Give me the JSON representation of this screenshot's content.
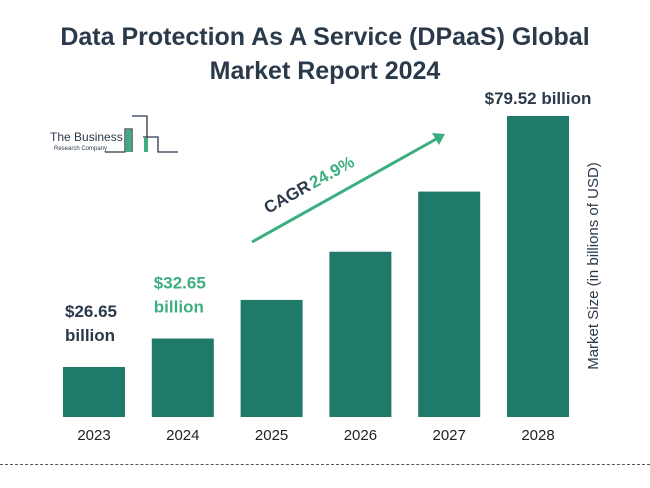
{
  "title_line1": "Data Protection As A Service (DPaaS) Global",
  "title_line2": "Market Report 2024",
  "logo": {
    "line1": "The Business",
    "line2": "Research Company"
  },
  "colors": {
    "bar": "#1f7a69",
    "accent": "#3dae80",
    "text": "#2b3a4a"
  },
  "chart_data": {
    "type": "bar",
    "title": "Data Protection As A Service (DPaaS) Global Market Report 2024",
    "categories": [
      "2023",
      "2024",
      "2025",
      "2026",
      "2027",
      "2028"
    ],
    "values": [
      26.65,
      32.65,
      40.78,
      50.93,
      63.6,
      79.52
    ],
    "ylabel": "Market Size (in billions of USD)",
    "grid": false,
    "data_labels": [
      {
        "category": "2023",
        "line1": "$26.65",
        "line2": "billion",
        "color": "#2b3a4a"
      },
      {
        "category": "2024",
        "line1": "$32.65",
        "line2": "billion",
        "color": "#3dae80"
      },
      {
        "category": "2028",
        "line1": "$79.52 billion",
        "line2": "",
        "color": "#2b3a4a"
      }
    ],
    "annotation": {
      "prefix": "CAGR",
      "value": "24.9%"
    }
  }
}
